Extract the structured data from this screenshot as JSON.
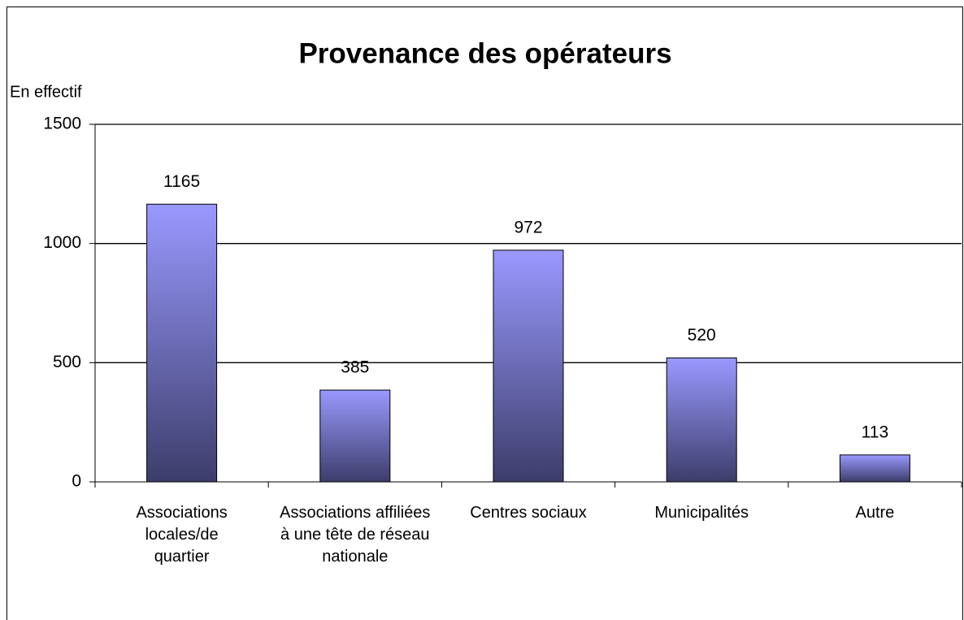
{
  "chart_data": {
    "type": "bar",
    "title": "Provenance des opérateurs",
    "y_label": "En effectif",
    "categories": [
      "Associations locales/de quartier",
      "Associations affiliées à une tête de réseau nationale",
      "Centres sociaux",
      "Municipalités",
      "Autre"
    ],
    "values": [
      1165,
      385,
      972,
      520,
      113
    ],
    "color_top": "#9999ff",
    "color_bottom": "#3d3d6b",
    "ylim": [
      0,
      1500
    ],
    "yticks": [
      0,
      500,
      1000,
      1500
    ],
    "grid": true
  }
}
